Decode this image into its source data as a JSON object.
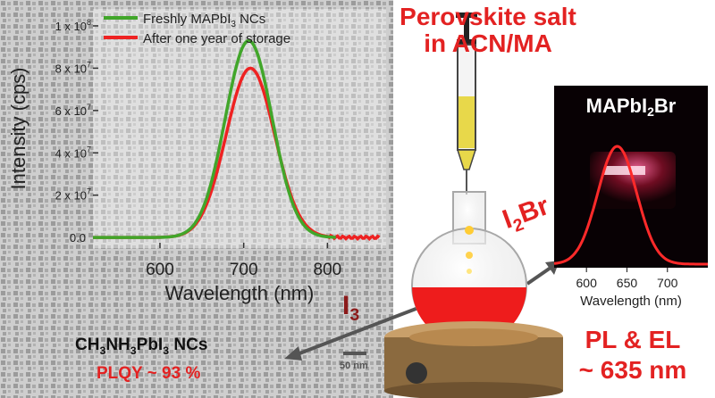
{
  "colors": {
    "fresh": "#41a62a",
    "aged": "#ee2222",
    "accent_red": "#e32222",
    "dark_red": "#8b1a1a"
  },
  "chart_data": [
    {
      "type": "line",
      "xlabel": "Wavelength (nm)",
      "ylabel": "Intensity (cps)",
      "xlim": [
        520,
        870
      ],
      "ylim": [
        -5000000.0,
        108000000.0
      ],
      "x_ticks": [
        "600",
        "700",
        "800"
      ],
      "y_ticks": [
        "0.0",
        "2 x 10",
        "4 x 10",
        "6 x 10",
        "8 x 10",
        "1 x 10"
      ],
      "y_tick_exp": "7",
      "y_tick_top_exp": "8",
      "legend_position": "top-left",
      "series": [
        {
          "name": "Freshly MAPbI3 NCs",
          "name_parts": [
            "Freshly MAPbI",
            "3",
            " NCs"
          ],
          "peak_x": 706,
          "peak_y": 93000000.0,
          "width_sigma": 28,
          "x_end": 810
        },
        {
          "name": "After one year of storage",
          "peak_x": 708,
          "peak_y": 80000000.0,
          "width_sigma": 29,
          "x_end": 862
        }
      ]
    },
    {
      "type": "line",
      "title_parts": [
        "MAPbI",
        "2",
        "Br"
      ],
      "xlabel": "Wavelength (nm)",
      "xlim": [
        560,
        750
      ],
      "x_ticks": [
        "600",
        "650",
        "700"
      ],
      "series": [
        {
          "peak_x": 638,
          "width_sigma": 24
        }
      ]
    }
  ],
  "labels": {
    "perovskite_line1": "Perovskite salt",
    "perovskite_line2": "in ACN/MA",
    "i3": "I",
    "i3_sub": "3",
    "i2br_a": "I",
    "i2br_sub": "2",
    "i2br_b": "Br",
    "formula_parts": [
      "CH",
      "3",
      "NH",
      "3",
      "PbI",
      "3",
      " NCs"
    ],
    "plqy": "PLQY ~ 93 %",
    "pl_el_line1": "PL & EL",
    "pl_el_line2": "~ 635 nm",
    "scale_bar": "50 nm"
  }
}
